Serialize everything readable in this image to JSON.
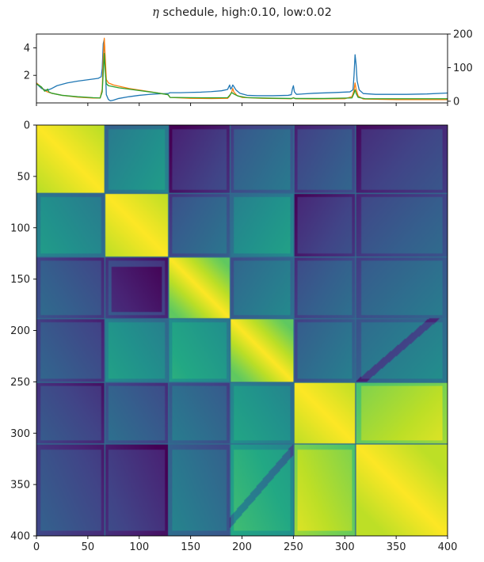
{
  "figure": {
    "title_symbol": "η",
    "title_text": " schedule, high:0.10, low:0.02"
  },
  "chart_data": [
    {
      "type": "line",
      "title": "η schedule, high:0.10, low:0.02",
      "xlim": [
        0,
        400
      ],
      "ylim_left": [
        0,
        5
      ],
      "ylim_right": [
        -5,
        200
      ],
      "left_yticks": [
        "2",
        "4"
      ],
      "right_yticks": [
        "0",
        "100",
        "200"
      ],
      "grid": false,
      "series": [
        {
          "color": "#1f77b4",
          "axis": "left",
          "points": [
            [
              0,
              1.4
            ],
            [
              5,
              1.05
            ],
            [
              10,
              0.9
            ],
            [
              15,
              1.05
            ],
            [
              20,
              1.25
            ],
            [
              30,
              1.45
            ],
            [
              40,
              1.58
            ],
            [
              50,
              1.68
            ],
            [
              60,
              1.78
            ],
            [
              63,
              1.9
            ],
            [
              64,
              2.5
            ],
            [
              65,
              4.3
            ],
            [
              66,
              4.6
            ],
            [
              67,
              2.8
            ],
            [
              68,
              0.6
            ],
            [
              70,
              0.25
            ],
            [
              72,
              0.15
            ],
            [
              75,
              0.2
            ],
            [
              80,
              0.32
            ],
            [
              90,
              0.45
            ],
            [
              100,
              0.55
            ],
            [
              110,
              0.62
            ],
            [
              120,
              0.66
            ],
            [
              128,
              0.68
            ],
            [
              130,
              0.74
            ],
            [
              140,
              0.74
            ],
            [
              150,
              0.76
            ],
            [
              160,
              0.78
            ],
            [
              170,
              0.82
            ],
            [
              180,
              0.88
            ],
            [
              186,
              0.98
            ],
            [
              188,
              1.3
            ],
            [
              189,
              1.0
            ],
            [
              190,
              1.1
            ],
            [
              191,
              1.3
            ],
            [
              192,
              1.2
            ],
            [
              194,
              0.95
            ],
            [
              198,
              0.7
            ],
            [
              205,
              0.55
            ],
            [
              215,
              0.52
            ],
            [
              230,
              0.52
            ],
            [
              245,
              0.55
            ],
            [
              248,
              0.6
            ],
            [
              249,
              1.0
            ],
            [
              250,
              1.25
            ],
            [
              251,
              0.8
            ],
            [
              253,
              0.62
            ],
            [
              270,
              0.7
            ],
            [
              290,
              0.75
            ],
            [
              305,
              0.8
            ],
            [
              308,
              0.95
            ],
            [
              309,
              2.0
            ],
            [
              310,
              3.5
            ],
            [
              311,
              2.8
            ],
            [
              312,
              1.6
            ],
            [
              314,
              0.95
            ],
            [
              318,
              0.68
            ],
            [
              330,
              0.62
            ],
            [
              360,
              0.62
            ],
            [
              380,
              0.65
            ],
            [
              400,
              0.72
            ]
          ]
        },
        {
          "color": "#ff7f0e",
          "axis": "left",
          "points": [
            [
              0,
              1.45
            ],
            [
              4,
              1.2
            ],
            [
              8,
              0.9
            ],
            [
              10,
              0.82
            ],
            [
              15,
              0.7
            ],
            [
              25,
              0.55
            ],
            [
              40,
              0.42
            ],
            [
              55,
              0.35
            ],
            [
              62,
              0.35
            ],
            [
              64,
              1.0
            ],
            [
              65,
              3.2
            ],
            [
              66,
              4.7
            ],
            [
              67,
              3.2
            ],
            [
              68,
              1.7
            ],
            [
              70,
              1.45
            ],
            [
              75,
              1.3
            ],
            [
              90,
              1.05
            ],
            [
              110,
              0.82
            ],
            [
              128,
              0.6
            ],
            [
              130,
              0.4
            ],
            [
              150,
              0.33
            ],
            [
              170,
              0.32
            ],
            [
              186,
              0.33
            ],
            [
              188,
              0.5
            ],
            [
              190,
              0.8
            ],
            [
              191,
              1.05
            ],
            [
              192,
              0.8
            ],
            [
              195,
              0.55
            ],
            [
              200,
              0.4
            ],
            [
              220,
              0.33
            ],
            [
              248,
              0.3
            ],
            [
              250,
              0.38
            ],
            [
              252,
              0.3
            ],
            [
              270,
              0.29
            ],
            [
              300,
              0.3
            ],
            [
              307,
              0.45
            ],
            [
              309,
              0.9
            ],
            [
              310,
              1.45
            ],
            [
              311,
              1.0
            ],
            [
              313,
              0.5
            ],
            [
              318,
              0.28
            ],
            [
              350,
              0.24
            ],
            [
              400,
              0.24
            ]
          ]
        },
        {
          "color": "#2ca02c",
          "axis": "left",
          "points": [
            [
              0,
              1.38
            ],
            [
              5,
              1.15
            ],
            [
              8,
              0.85
            ],
            [
              10,
              0.95
            ],
            [
              11,
              1.0
            ],
            [
              12,
              0.8
            ],
            [
              15,
              0.7
            ],
            [
              25,
              0.55
            ],
            [
              40,
              0.45
            ],
            [
              55,
              0.38
            ],
            [
              62,
              0.36
            ],
            [
              64,
              0.8
            ],
            [
              65,
              2.2
            ],
            [
              66,
              3.6
            ],
            [
              67,
              2.2
            ],
            [
              68,
              1.4
            ],
            [
              70,
              1.25
            ],
            [
              80,
              1.1
            ],
            [
              100,
              0.9
            ],
            [
              115,
              0.75
            ],
            [
              128,
              0.6
            ],
            [
              130,
              0.4
            ],
            [
              150,
              0.38
            ],
            [
              170,
              0.37
            ],
            [
              186,
              0.38
            ],
            [
              188,
              0.55
            ],
            [
              190,
              0.75
            ],
            [
              192,
              0.65
            ],
            [
              196,
              0.5
            ],
            [
              205,
              0.38
            ],
            [
              230,
              0.34
            ],
            [
              248,
              0.32
            ],
            [
              250,
              0.36
            ],
            [
              252,
              0.32
            ],
            [
              280,
              0.32
            ],
            [
              307,
              0.36
            ],
            [
              309,
              0.7
            ],
            [
              310,
              0.95
            ],
            [
              311,
              0.7
            ],
            [
              313,
              0.4
            ],
            [
              320,
              0.3
            ],
            [
              360,
              0.3
            ],
            [
              400,
              0.3
            ]
          ]
        }
      ]
    },
    {
      "type": "heatmap",
      "colormap": "viridis",
      "xlim": [
        0,
        400
      ],
      "ylim": [
        400,
        0
      ],
      "vlim": [
        0,
        1
      ],
      "x_ticks": [
        "0",
        "50",
        "100",
        "150",
        "200",
        "250",
        "300",
        "350",
        "400"
      ],
      "y_ticks": [
        "0",
        "50",
        "100",
        "150",
        "200",
        "250",
        "300",
        "350",
        "400"
      ],
      "block_edges": [
        0,
        66,
        128,
        188,
        250,
        310,
        400
      ],
      "blocks": [
        [
          1.0,
          0.48,
          0.16,
          0.34,
          0.26,
          0.2
        ],
        [
          0.48,
          1.0,
          0.32,
          0.5,
          0.18,
          0.28
        ],
        [
          0.28,
          0.22,
          1.0,
          0.4,
          0.3,
          0.35
        ],
        [
          0.26,
          0.5,
          0.56,
          1.0,
          0.36,
          0.42
        ],
        [
          0.22,
          0.3,
          0.35,
          0.52,
          1.0,
          0.88
        ],
        [
          0.24,
          0.16,
          0.38,
          0.62,
          0.88,
          1.0
        ]
      ]
    }
  ]
}
